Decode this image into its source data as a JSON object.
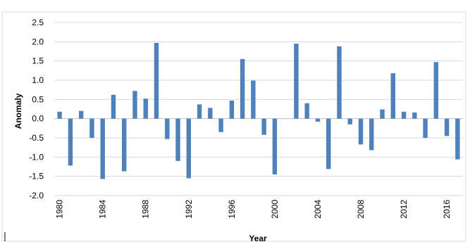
{
  "chart_data": {
    "type": "bar",
    "title": "",
    "xlabel": "Year",
    "ylabel": "Anomaly",
    "ylim": [
      -2.0,
      2.5
    ],
    "ytick_step": 0.5,
    "ytick_labels": [
      "2.5",
      "2.0",
      "1.5",
      "1.0",
      "0.5",
      "0.0",
      "-0.5",
      "-1.0",
      "-1.5",
      "-2.0"
    ],
    "ytick_values": [
      2.5,
      2.0,
      1.5,
      1.0,
      0.5,
      0.0,
      -0.5,
      -1.0,
      -1.5,
      -2.0
    ],
    "xtick_labels": [
      "1980",
      "1984",
      "1988",
      "1992",
      "1996",
      "2000",
      "2004",
      "2008",
      "2012",
      "2016"
    ],
    "grid": true,
    "legend": "none",
    "bar_color": "#4F81BD",
    "grid_color": "#D9D9D9",
    "years": [
      1980,
      1981,
      1982,
      1983,
      1984,
      1985,
      1986,
      1987,
      1988,
      1989,
      1990,
      1991,
      1992,
      1993,
      1994,
      1995,
      1996,
      1997,
      1998,
      1999,
      2000,
      2001,
      2002,
      2003,
      2004,
      2005,
      2006,
      2007,
      2008,
      2009,
      2010,
      2011,
      2012,
      2013,
      2014,
      2015,
      2016,
      2017
    ],
    "values": [
      0.18,
      -1.22,
      0.2,
      -0.5,
      -1.57,
      0.62,
      -1.37,
      0.72,
      0.52,
      1.97,
      -0.53,
      -1.1,
      -1.55,
      0.37,
      0.28,
      -0.35,
      0.47,
      1.55,
      0.99,
      -0.42,
      -1.45,
      0.0,
      1.95,
      0.4,
      -0.08,
      -1.31,
      1.88,
      -0.15,
      -0.67,
      -0.82,
      0.24,
      1.18,
      0.18,
      0.16,
      -0.5,
      1.47,
      -0.45,
      -1.06
    ]
  }
}
